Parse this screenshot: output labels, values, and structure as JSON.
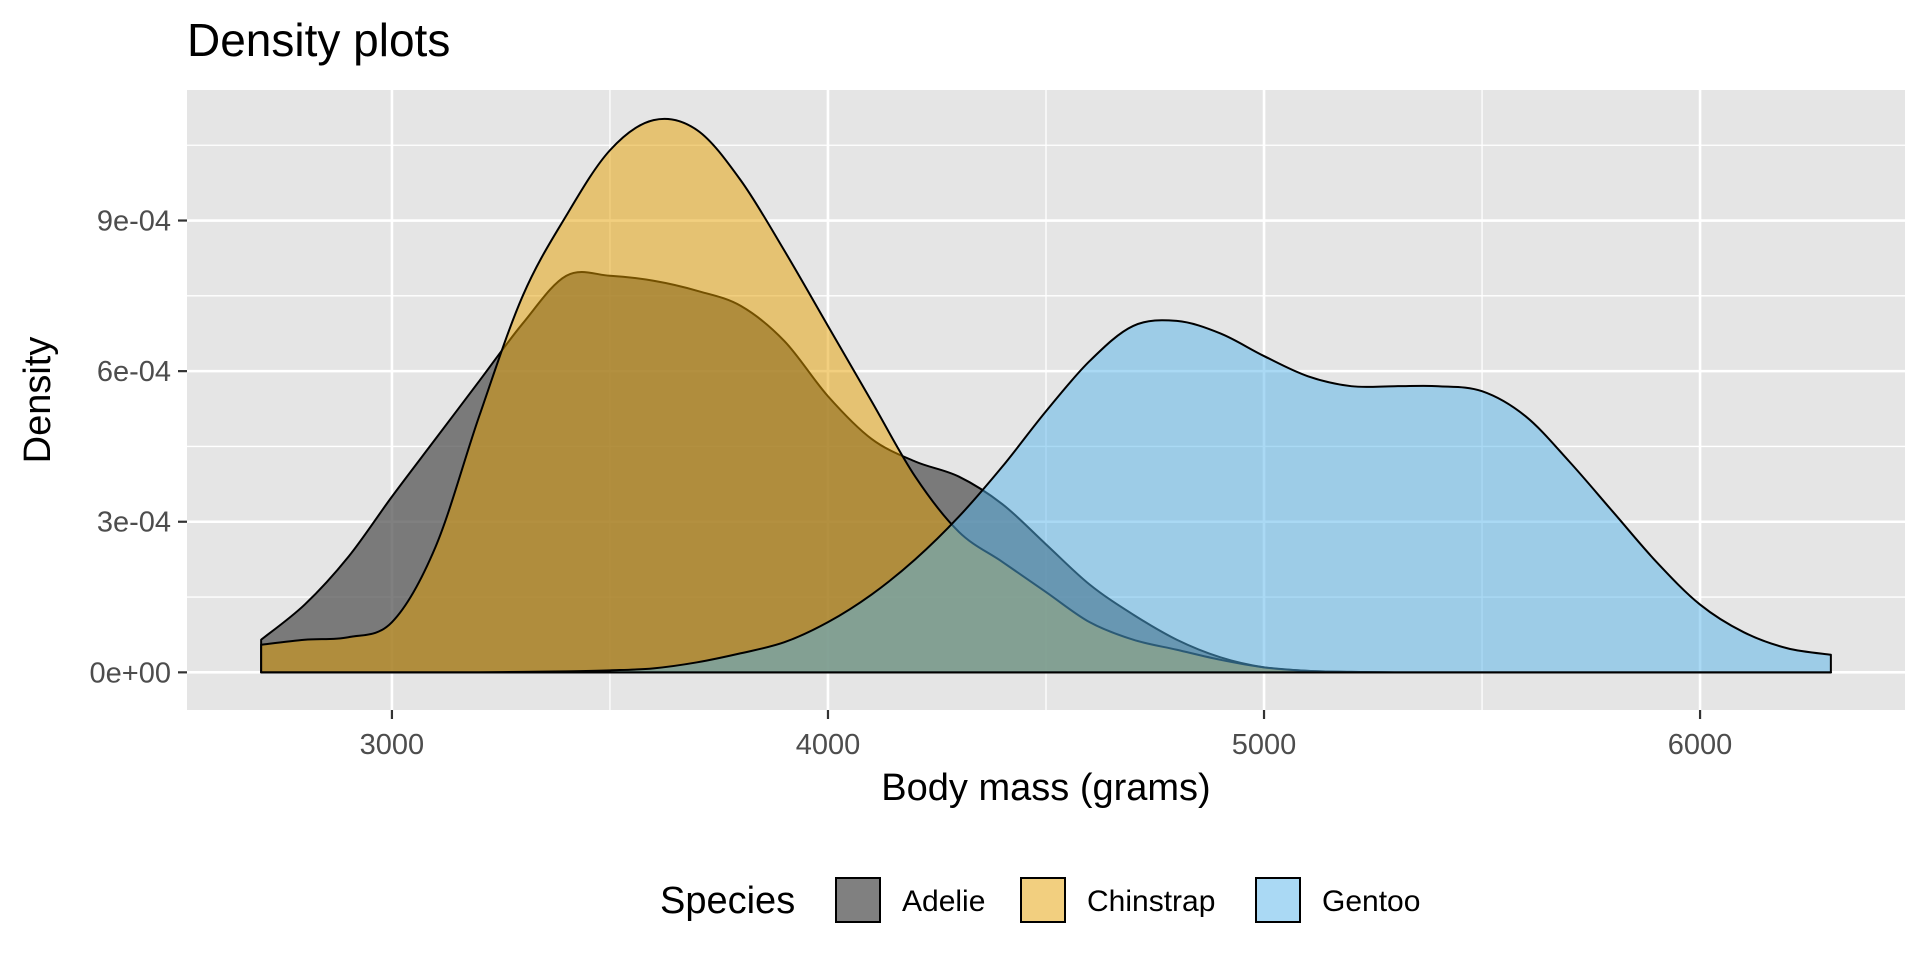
{
  "chart_data": {
    "type": "area",
    "title": "Density plots",
    "xlabel": "Body mass (grams)",
    "ylabel": "Density",
    "xlim": [
      2530,
      6470
    ],
    "ylim": [
      -7.5e-05,
      0.00116
    ],
    "x_ticks": [
      3000,
      4000,
      5000,
      6000
    ],
    "x_tick_labels": [
      "3000",
      "4000",
      "5000",
      "6000"
    ],
    "y_ticks": [
      0,
      0.0003,
      0.0006,
      0.0009
    ],
    "y_tick_labels": [
      "0e+00",
      "3e-04",
      "6e-04",
      "9e-04"
    ],
    "grid": true,
    "legend": {
      "title": "Species",
      "position": "bottom",
      "entries": [
        "Adelie",
        "Chinstrap",
        "Gentoo"
      ]
    },
    "colors": {
      "panel": "#e5e5e5",
      "grid": "#ffffff",
      "outline": "#000000"
    },
    "series": [
      {
        "name": "Adelie",
        "color": "#555555",
        "opacity": 0.75,
        "x": [
          2700,
          2800,
          2900,
          3000,
          3100,
          3200,
          3300,
          3400,
          3500,
          3600,
          3700,
          3800,
          3900,
          4000,
          4100,
          4200,
          4300,
          4400,
          4500,
          4600,
          4700,
          4800,
          4900,
          5000,
          5100,
          5200,
          5300,
          5400,
          5500,
          5600,
          5700,
          5800,
          5900,
          6000,
          6100,
          6200,
          6300
        ],
        "y": [
          6.5e-05,
          0.000135,
          0.00023,
          0.00035,
          0.000465,
          0.00058,
          0.000695,
          0.00079,
          0.00079,
          0.00078,
          0.00076,
          0.00073,
          0.00066,
          0.00055,
          0.000465,
          0.00042,
          0.00039,
          0.000335,
          0.000255,
          0.000175,
          0.000115,
          6.5e-05,
          3e-05,
          1e-05,
          3e-06,
          1e-06,
          0,
          0,
          0,
          0,
          0,
          0,
          0,
          0,
          0,
          0,
          0
        ]
      },
      {
        "name": "Chinstrap",
        "color": "#E69F00",
        "opacity": 0.5,
        "x": [
          2700,
          2800,
          2900,
          3000,
          3100,
          3200,
          3300,
          3400,
          3500,
          3600,
          3700,
          3800,
          3900,
          4000,
          4100,
          4200,
          4300,
          4400,
          4500,
          4600,
          4700,
          4800,
          4900,
          5000,
          5100,
          5200,
          5300,
          5400,
          5500,
          5600,
          5700,
          5800,
          5900,
          6000,
          6100,
          6200,
          6300
        ],
        "y": [
          5.5e-05,
          6.5e-05,
          7e-05,
          0.0001,
          0.00025,
          0.00051,
          0.00075,
          0.00091,
          0.00104,
          0.0011,
          0.00108,
          0.00098,
          0.00084,
          0.00069,
          0.00054,
          0.00039,
          0.00028,
          0.00022,
          0.00016,
          0.0001,
          6.5e-05,
          4.5e-05,
          2.5e-05,
          1e-05,
          3e-06,
          1e-06,
          0,
          0,
          0,
          0,
          0,
          0,
          0,
          0,
          0,
          0,
          0
        ]
      },
      {
        "name": "Gentoo",
        "color": "#56B4E9",
        "opacity": 0.5,
        "x": [
          2700,
          2800,
          2900,
          3000,
          3100,
          3200,
          3300,
          3400,
          3500,
          3600,
          3700,
          3800,
          3900,
          4000,
          4100,
          4200,
          4300,
          4400,
          4500,
          4600,
          4700,
          4800,
          4900,
          5000,
          5100,
          5200,
          5300,
          5400,
          5500,
          5600,
          5700,
          5800,
          5900,
          6000,
          6100,
          6200,
          6300
        ],
        "y": [
          0,
          0,
          0,
          0,
          0,
          0,
          1e-06,
          2e-06,
          4e-06,
          8e-06,
          2e-05,
          3.8e-05,
          6e-05,
          0.0001,
          0.000155,
          0.000225,
          0.00031,
          0.00041,
          0.00052,
          0.00062,
          0.00069,
          0.0007,
          0.000675,
          0.00063,
          0.00059,
          0.00057,
          0.00057,
          0.00057,
          0.00056,
          0.00051,
          0.00042,
          0.00032,
          0.00022,
          0.000135,
          8e-05,
          4.8e-05,
          3.5e-05
        ]
      }
    ]
  }
}
